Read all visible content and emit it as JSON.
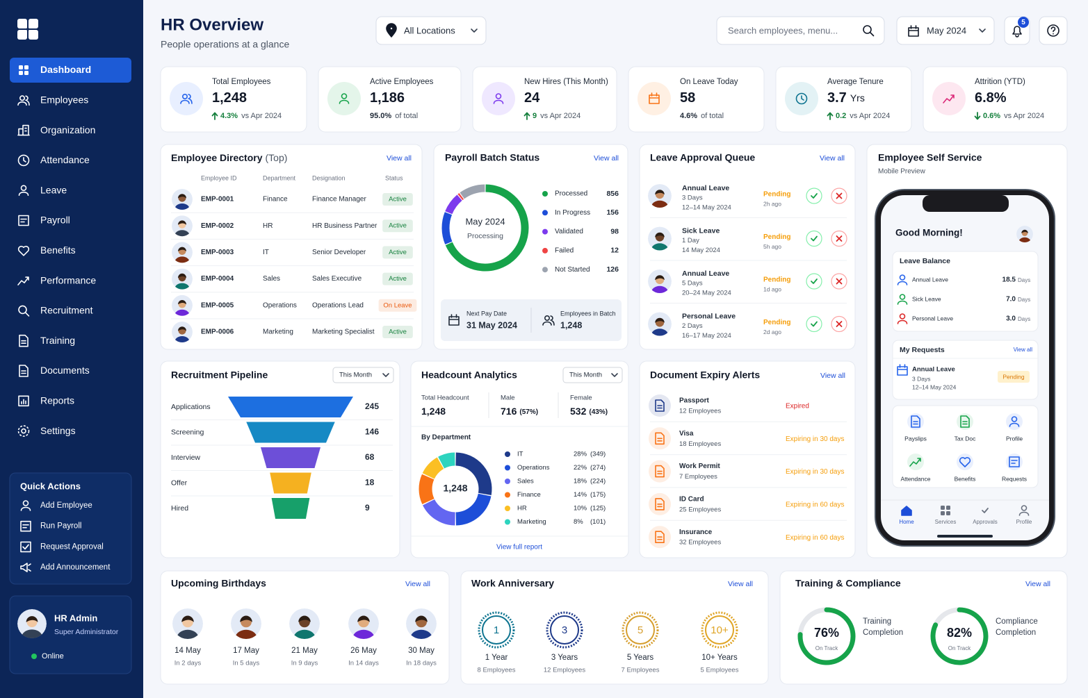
{
  "sidebar": {
    "nav": [
      "Dashboard",
      "Employees",
      "Organization",
      "Attendance",
      "Leave",
      "Payroll",
      "Benefits",
      "Performance",
      "Recruitment",
      "Training",
      "Documents",
      "Reports",
      "Settings"
    ],
    "quick_actions": {
      "title": "Quick Actions",
      "items": [
        "Add Employee",
        "Run Payroll",
        "Request Approval",
        "Add Announcement"
      ]
    },
    "user": {
      "name": "HR Admin",
      "role": "Super Administrator",
      "status": "Online"
    }
  },
  "header": {
    "title": "HR Overview",
    "subtitle": "People operations at a glance",
    "location": "All Locations",
    "search": "Search employees, menu...",
    "period": "May 2024",
    "notifications": "5"
  },
  "kpis": [
    {
      "label": "Total Employees",
      "value": "1,248",
      "change": "4.3%",
      "note": "vs Apr 2024",
      "trend": "up"
    },
    {
      "label": "Active Employees",
      "value": "1,186",
      "change": "95.0%",
      "note": "of total"
    },
    {
      "label": "New Hires (This Month)",
      "value": "24",
      "change": "9",
      "note": "vs Apr 2024",
      "trend": "up"
    },
    {
      "label": "On Leave Today",
      "value": "58",
      "change": "4.6%",
      "note": "of total"
    },
    {
      "label": "Average Tenure",
      "value": "3.7",
      "unit": "Yrs",
      "change": "0.2",
      "note": "vs Apr 2024",
      "trend": "up"
    },
    {
      "label": "Attrition (YTD)",
      "value": "6.8%",
      "change": "0.6%",
      "note": "vs Apr 2024",
      "trend": "down"
    }
  ],
  "directory": {
    "title": "Employee Directory",
    "title_suffix": "(Top)",
    "view_all": "View all",
    "columns": [
      "Employee ID",
      "Department",
      "Designation",
      "Status"
    ],
    "rows": [
      {
        "id": "EMP-0001",
        "department": "Finance",
        "designation": "Finance Manager",
        "status": "Active",
        "status_color": "#15803d"
      },
      {
        "id": "EMP-0002",
        "department": "HR",
        "designation": "HR Business Partner",
        "status": "Active",
        "status_color": "#15803d"
      },
      {
        "id": "EMP-0003",
        "department": "IT",
        "designation": "Senior Developer",
        "status": "Active",
        "status_color": "#15803d"
      },
      {
        "id": "EMP-0004",
        "department": "Sales",
        "designation": "Sales Executive",
        "status": "Active",
        "status_color": "#15803d"
      },
      {
        "id": "EMP-0005",
        "department": "Operations",
        "designation": "Operations Lead",
        "status": "On Leave",
        "status_color": "#ea580c"
      },
      {
        "id": "EMP-0006",
        "department": "Marketing",
        "designation": "Marketing Specialist",
        "status": "Active",
        "status_color": "#15803d"
      }
    ]
  },
  "payroll": {
    "title": "Payroll Batch Status",
    "view_all": "View all",
    "center": [
      "May 2024",
      "Processing"
    ],
    "categories": [
      "Processed",
      "In Progress",
      "Validated",
      "Failed",
      "Not Started"
    ],
    "values": [
      856,
      156,
      98,
      12,
      126
    ],
    "colors": [
      "#16a34a",
      "#1d4ed8",
      "#7c3aed",
      "#ef4444",
      "#9ca3af"
    ],
    "next_pay_label": "Next Pay Date",
    "next_pay": "31 May 2024",
    "batch_label": "Employees in Batch",
    "batch": "1,248"
  },
  "leave_queue": {
    "title": "Leave Approval Queue",
    "view_all": "View all",
    "items": [
      {
        "type": "Annual Leave",
        "days": "3 Days",
        "dates": "12–14 May 2024",
        "status": "Pending",
        "age": "2h ago"
      },
      {
        "type": "Sick Leave",
        "days": "1 Day",
        "dates": "14 May 2024",
        "status": "Pending",
        "age": "5h ago"
      },
      {
        "type": "Annual Leave",
        "days": "5 Days",
        "dates": "20–24 May 2024",
        "status": "Pending",
        "age": "1d ago"
      },
      {
        "type": "Personal Leave",
        "days": "2 Days",
        "dates": "16–17 May 2024",
        "status": "Pending",
        "age": "2d ago"
      }
    ]
  },
  "ess": {
    "title": "Employee Self Service",
    "subtitle": "Mobile Preview",
    "greeting": "Good Morning!",
    "balance_title": "Leave Balance",
    "balances": [
      {
        "name": "Annual Leave",
        "value": "18.5",
        "unit": "Days",
        "color": "#2563eb"
      },
      {
        "name": "Sick Leave",
        "value": "7.0",
        "unit": "Days",
        "color": "#16a34a"
      },
      {
        "name": "Personal Leave",
        "value": "3.0",
        "unit": "Days",
        "color": "#dc2626"
      }
    ],
    "requests_title": "My Requests",
    "requests_view_all": "View all",
    "request": {
      "type": "Annual Leave",
      "days": "3 Days",
      "dates": "12–14 May 2024",
      "status": "Pending"
    },
    "services": [
      "Payslips",
      "Tax Doc",
      "Profile",
      "Attendance",
      "Benefits",
      "Requests"
    ],
    "tabs": [
      "Home",
      "Services",
      "Approvals",
      "Profile"
    ]
  },
  "recruitment": {
    "title": "Recruitment Pipeline",
    "filter": "This Month",
    "categories": [
      "Applications",
      "Screening",
      "Interview",
      "Offer",
      "Hired"
    ],
    "values": [
      245,
      146,
      68,
      18,
      9
    ],
    "colors": [
      "#1d6fe0",
      "#1689c4",
      "#6d4fd8",
      "#f5b120",
      "#17a06a"
    ]
  },
  "headcount": {
    "title": "Headcount Analytics",
    "filter": "This Month",
    "stats": [
      {
        "label": "Total Headcount",
        "value": "1,248"
      },
      {
        "label": "Male",
        "value": "716",
        "share": "(57%)"
      },
      {
        "label": "Female",
        "value": "532",
        "share": "(43%)"
      }
    ],
    "by_department": "By Department",
    "center": "1,248",
    "categories": [
      "IT",
      "Operations",
      "Sales",
      "Finance",
      "HR",
      "Marketing"
    ],
    "percents": [
      "28%",
      "22%",
      "18%",
      "14%",
      "10%",
      "8%"
    ],
    "values": [
      349,
      274,
      224,
      175,
      125,
      101
    ],
    "value_labels": [
      "(349)",
      "(274)",
      "(224)",
      "(175)",
      "(125)",
      "(101)"
    ],
    "colors": [
      "#1e3a8a",
      "#1d4ed8",
      "#6366f1",
      "#f97316",
      "#fbbf24",
      "#2dd4bf"
    ],
    "footer": "View full report"
  },
  "documents": {
    "title": "Document Expiry Alerts",
    "view_all": "View all",
    "items": [
      {
        "name": "Passport",
        "count": "12 Employees",
        "status": "Expired",
        "color": "#dc2626",
        "icon_color": "#1e3a8a"
      },
      {
        "name": "Visa",
        "count": "18 Employees",
        "status": "Expiring in 30 days",
        "color": "#f59e0b",
        "icon_color": "#f97316"
      },
      {
        "name": "Work Permit",
        "count": "7 Employees",
        "status": "Expiring in 30 days",
        "color": "#f59e0b",
        "icon_color": "#f97316"
      },
      {
        "name": "ID Card",
        "count": "25 Employees",
        "status": "Expiring in 60 days",
        "color": "#f59e0b",
        "icon_color": "#f97316"
      },
      {
        "name": "Insurance",
        "count": "32 Employees",
        "status": "Expiring in 60 days",
        "color": "#f59e0b",
        "icon_color": "#f97316"
      }
    ]
  },
  "birthdays": {
    "title": "Upcoming Birthdays",
    "view_all": "View all",
    "items": [
      {
        "date": "14 May",
        "when": "In 2 days"
      },
      {
        "date": "17 May",
        "when": "In 5 days"
      },
      {
        "date": "21 May",
        "when": "In 9 days"
      },
      {
        "date": "26 May",
        "when": "In 14 days"
      },
      {
        "date": "30 May",
        "when": "In 18 days"
      }
    ]
  },
  "anniversary": {
    "title": "Work Anniversary",
    "view_all": "View all",
    "items": [
      {
        "badge": "1",
        "label": "1 Year",
        "count": "8 Employees",
        "color": "#0e7490"
      },
      {
        "badge": "3",
        "label": "3 Years",
        "count": "12 Employees",
        "color": "#1e3a8a"
      },
      {
        "badge": "5",
        "label": "5 Years",
        "count": "7 Employees",
        "color": "#d69e2e"
      },
      {
        "badge": "10+",
        "label": "10+ Years",
        "count": "5 Employees",
        "color": "#e0a526"
      }
    ]
  },
  "training": {
    "title": "Training & Compliance",
    "view_all": "View all",
    "items": [
      {
        "value": 76,
        "value_label": "76%",
        "status": "On Track",
        "label": [
          "Training",
          "Completion"
        ]
      },
      {
        "value": 82,
        "value_label": "82%",
        "status": "On Track",
        "label": [
          "Compliance",
          "Completion"
        ]
      }
    ]
  }
}
